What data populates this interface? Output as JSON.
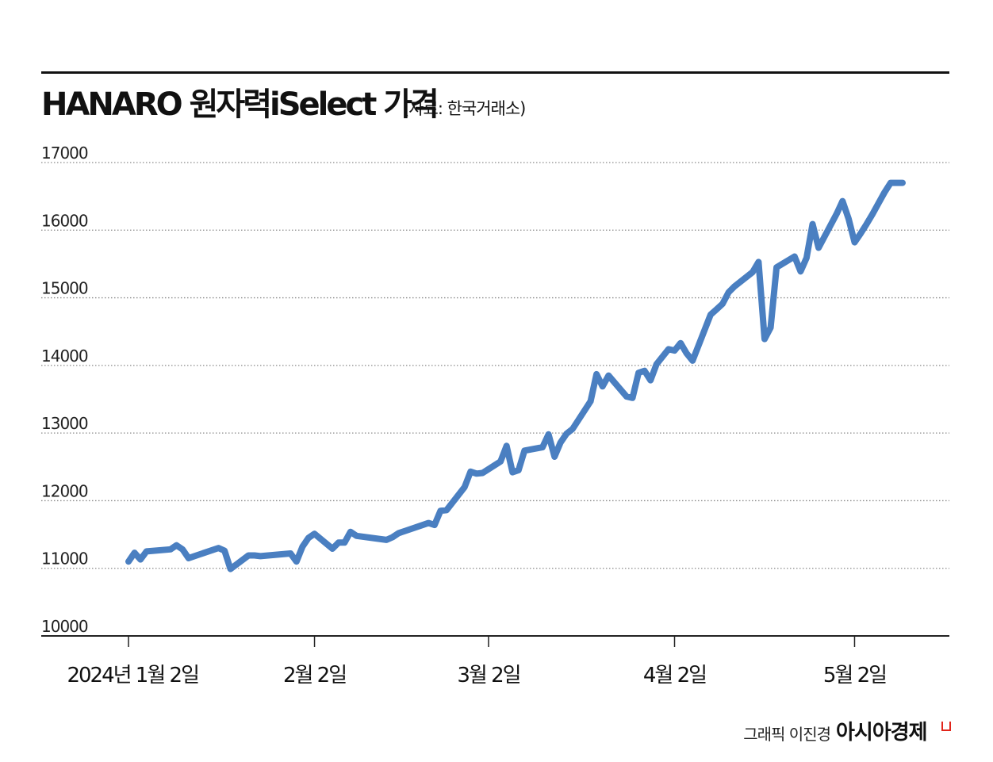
{
  "header": {
    "title": "HANARO 원자력iSelect 가격",
    "source": "(자료: 한국거래소)"
  },
  "footer": {
    "credit": "그래픽 이진경",
    "brand": "아시아경제"
  },
  "colors": {
    "line": "#4a7fc1",
    "grid": "#8a8a8a",
    "axis": "#222222",
    "brand_mark": "#e1251b"
  },
  "chart_data": {
    "type": "line",
    "title": "HANARO 원자력iSelect 가격",
    "xlabel": "",
    "ylabel": "",
    "ylim": [
      10000,
      17000
    ],
    "yticks": [
      10000,
      11000,
      12000,
      13000,
      14000,
      15000,
      16000,
      17000
    ],
    "ytick_labels": [
      "10000",
      "11000",
      "12000",
      "13000",
      "14000",
      "15000",
      "16000",
      "17000"
    ],
    "xticks": [
      "2024-01-02",
      "2024-02-02",
      "2024-03-02",
      "2024-04-02",
      "2024-05-02"
    ],
    "xtick_labels": [
      "2024년 1월 2일",
      "2월 2일",
      "3월 2일",
      "4월 2일",
      "5월 2일"
    ],
    "grid": "horizontal dotted",
    "series": [
      {
        "x": [
          "2024-01-02",
          "2024-01-03",
          "2024-01-04",
          "2024-01-05",
          "2024-01-09",
          "2024-01-10",
          "2024-01-11",
          "2024-01-12",
          "2024-01-16",
          "2024-01-17",
          "2024-01-18",
          "2024-01-19",
          "2024-01-22",
          "2024-01-23",
          "2024-01-24",
          "2024-01-29",
          "2024-01-30",
          "2024-01-31",
          "2024-02-01",
          "2024-02-02",
          "2024-02-05",
          "2024-02-06",
          "2024-02-07",
          "2024-02-08",
          "2024-02-09",
          "2024-02-14",
          "2024-02-15",
          "2024-02-16",
          "2024-02-21",
          "2024-02-22",
          "2024-02-23",
          "2024-02-24",
          "2024-02-27",
          "2024-02-28",
          "2024-02-29",
          "2024-03-01",
          "2024-03-04",
          "2024-03-05",
          "2024-03-06",
          "2024-03-07",
          "2024-03-08",
          "2024-03-11",
          "2024-03-12",
          "2024-03-13",
          "2024-03-14",
          "2024-03-15",
          "2024-03-16",
          "2024-03-19",
          "2024-03-20",
          "2024-03-21",
          "2024-03-22",
          "2024-03-25",
          "2024-03-26",
          "2024-03-27",
          "2024-03-28",
          "2024-03-29",
          "2024-03-30",
          "2024-04-01",
          "2024-04-02",
          "2024-04-03",
          "2024-04-04",
          "2024-04-05",
          "2024-04-08",
          "2024-04-09",
          "2024-04-10",
          "2024-04-11",
          "2024-04-12",
          "2024-04-15",
          "2024-04-16",
          "2024-04-17",
          "2024-04-18",
          "2024-04-19",
          "2024-04-22",
          "2024-04-23",
          "2024-04-24",
          "2024-04-25",
          "2024-04-26",
          "2024-04-29",
          "2024-04-30",
          "2024-05-01",
          "2024-05-02",
          "2024-05-03",
          "2024-05-04",
          "2024-05-05",
          "2024-05-06",
          "2024-05-07",
          "2024-05-08",
          "2024-05-09",
          "2024-05-10"
        ],
        "values": [
          11100,
          11230,
          11130,
          11250,
          11280,
          11340,
          11280,
          11150,
          11270,
          11300,
          11260,
          10990,
          11190,
          11190,
          11180,
          11220,
          11100,
          11320,
          11450,
          11510,
          11290,
          11380,
          11380,
          11540,
          11480,
          11420,
          11460,
          11520,
          11670,
          11640,
          11850,
          11860,
          12200,
          12430,
          12400,
          12410,
          12580,
          12810,
          12420,
          12450,
          12740,
          12790,
          12980,
          12650,
          12860,
          12990,
          13060,
          13470,
          13870,
          13690,
          13850,
          13540,
          13520,
          13890,
          13920,
          13780,
          14020,
          14240,
          14220,
          14330,
          14180,
          14070,
          14750,
          14830,
          14910,
          15080,
          15170,
          15380,
          15530,
          14390,
          14560,
          15450,
          15610,
          15390,
          15590,
          16090,
          15740,
          16240,
          16430,
          16170,
          15820,
          15950,
          16090,
          16240,
          16400,
          16560,
          16700,
          16700,
          16700
        ]
      }
    ]
  }
}
